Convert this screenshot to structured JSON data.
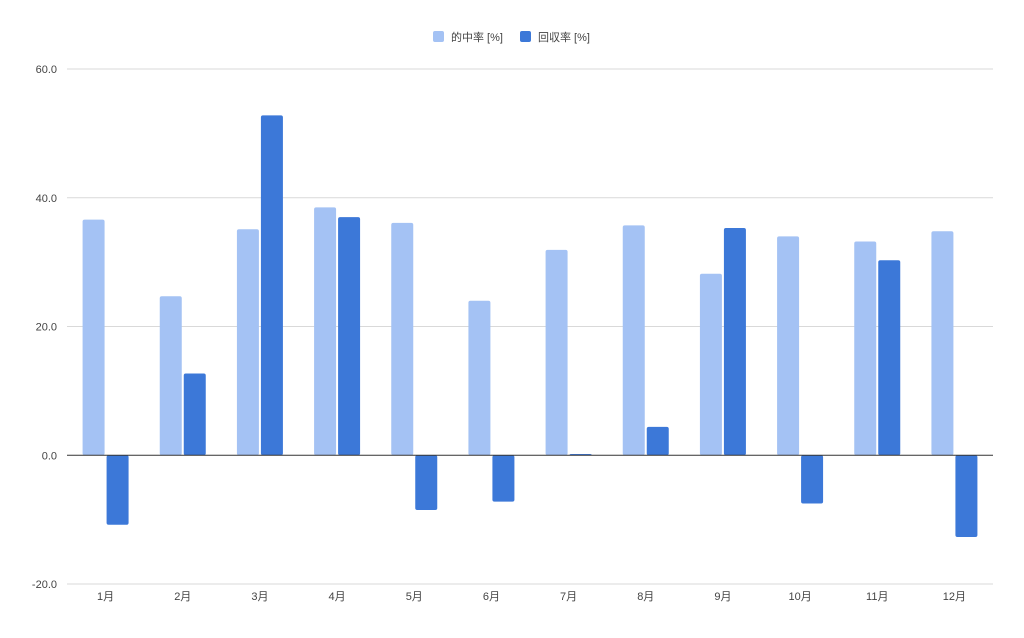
{
  "chart_data": {
    "type": "bar",
    "title": "",
    "xlabel": "",
    "ylabel": "",
    "categories": [
      "1月",
      "2月",
      "3月",
      "4月",
      "5月",
      "6月",
      "7月",
      "8月",
      "9月",
      "10月",
      "11月",
      "12月"
    ],
    "series": [
      {
        "name": "的中率 [%]",
        "color": "#a4c2f4",
        "values": [
          36.6,
          24.7,
          35.1,
          38.5,
          36.1,
          24.0,
          31.9,
          35.7,
          28.2,
          34.0,
          33.2,
          34.8
        ]
      },
      {
        "name": "回収率 [%]",
        "color": "#3c78d8",
        "values": [
          -10.8,
          12.7,
          52.8,
          37.0,
          -8.5,
          -7.2,
          0.2,
          4.4,
          35.3,
          -7.5,
          30.3,
          -12.7
        ]
      }
    ],
    "ylim": [
      -20,
      60
    ],
    "yticks": [
      "60.0",
      "40.0",
      "20.0",
      "0.0",
      "-20.0"
    ],
    "ytick_values": [
      60,
      40,
      20,
      0,
      -20
    ],
    "grid": true,
    "legend_position": "top-center"
  }
}
